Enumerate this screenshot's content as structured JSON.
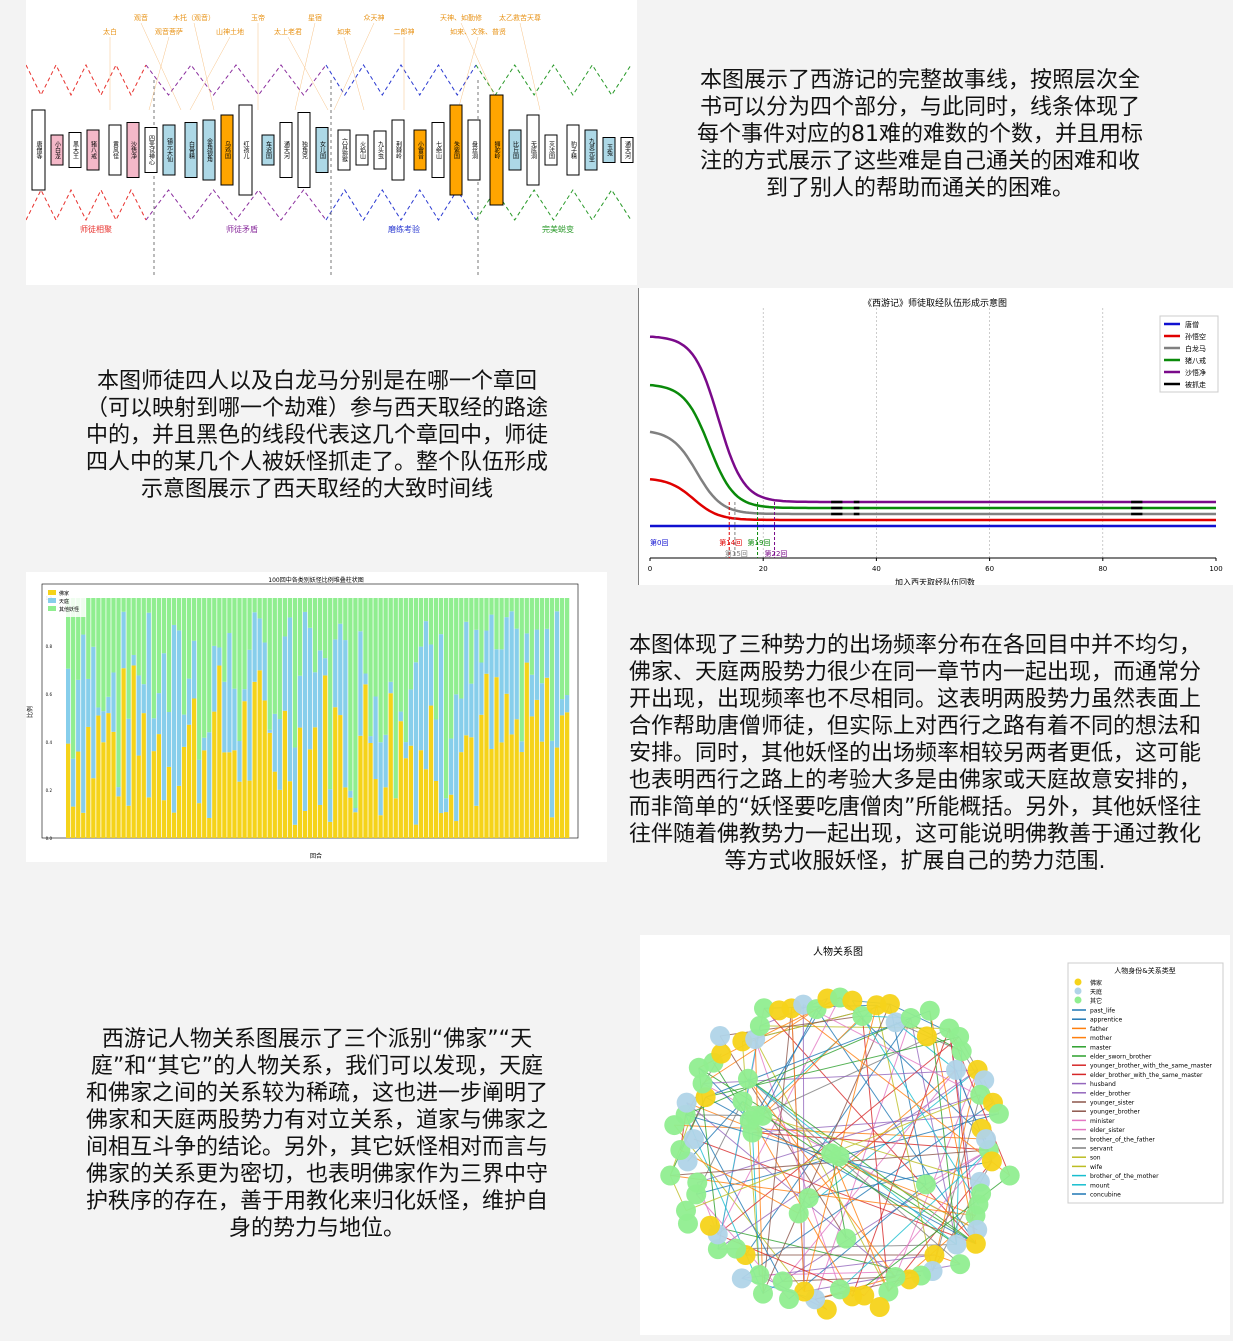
{
  "texts": {
    "story_line": "本图展示了西游记的完整故事线，按照层次全书可以分为四个部分，与此同时，线条体现了每个事件对应的81难的难数的个数，并且用标注的方式展示了这些难是自己通关的困难和收到了别人的帮助而通关的困难。",
    "team_formation": "本图师徒四人以及白龙马分别是在哪一个章回（可以映射到哪一个劫难）参与西天取经的路途中的，并且黑色的线段代表这几个章回中，师徒四人中的某几个人被妖怪抓走了。整个队伍形成示意图展示了西天取经的大致时间线",
    "factions": "本图体现了三种势力的出场频率分布在各回目中并不均匀，佛家、天庭两股势力很少在同一章节内一起出现，而通常分开出现，出现频率也不尽相同。这表明两股势力虽然表面上合作帮助唐僧师徒，但实际上对西行之路有着不同的想法和安排。同时，其他妖怪的出场频率相较另两者更低，这可能也表明西行之路上的考验大多是由佛家或天庭故意安排的，而非简单的“妖怪要吃唐僧肉”所能概括。另外，其他妖怪往往伴随着佛教势力一起出现，这可能说明佛教善于通过教化等方式收服妖怪，扩展自己的势力范围.",
    "relations": "西游记人物关系图展示了三个派别“佛家”“天庭”和“其它”的人物关系，我们可以发现，天庭和佛家之间的关系较为稀疏，这也进一步阐明了佛家和天庭两股势力有对立关系，道家与佛家之间相互斗争的结论。另外，其它妖怪相对而言与佛家的关系更为密切，也表明佛家作为三界中守护秩序的存在，善于用教化来归化妖怪，维护自身的势力与地位。"
  },
  "chart_data": [
    {
      "type": "diagram",
      "title": "",
      "top_labels": [
        "观音",
        "木托（观音）",
        "玉帝",
        "星宿",
        "众天神",
        "天神、如勤修",
        "太乙救苦天尊",
        "太白",
        "观音菩萨",
        "山神土地",
        "太上老君",
        "如来",
        "二郎神",
        "如来、文殊、普贤"
      ],
      "boxes": [
        "唐僧等",
        "小白龙",
        "黑大王",
        "猪八戒",
        "黄风怪",
        "沙悟净",
        "四圣试禅心",
        "镇元大仙",
        "白骨精",
        "金角银角",
        "乌鸡国",
        "红孩儿",
        "车迟国",
        "通天河",
        "独角兕",
        "女儿国",
        "六耳猕猴",
        "火焰山",
        "九头虫",
        "荆棘岭",
        "小雷音",
        "七绝山",
        "朱紫国",
        "盘丝洞",
        "狮驼岭",
        "比丘国",
        "无底洞",
        "灭法国",
        "豹子精",
        "九灵元圣",
        "玉兔",
        "通天河"
      ],
      "bottom_labels": [
        "师徒相聚",
        "师徒矛盾",
        "磨练考验",
        "完美蜕变"
      ],
      "section_colors": [
        "#e8312d",
        "#8b2f9e",
        "#2b3ad1",
        "#2a9a2a"
      ]
    },
    {
      "type": "line",
      "title": "《西游记》师徒取经队伍形成示意图",
      "xlabel": "加入西天取经队伍回数",
      "xlim": [
        0,
        100
      ],
      "xticks": [
        0,
        20,
        40,
        60,
        80,
        100
      ],
      "legend_placement": "top-right",
      "series": [
        {
          "name": "唐僧",
          "color": "#1010d0",
          "join": 0
        },
        {
          "name": "孙悟空",
          "color": "#e00000",
          "join": 14
        },
        {
          "name": "白龙马",
          "color": "#808080",
          "join": 15
        },
        {
          "name": "猪八戒",
          "color": "#0a8a0a",
          "join": 19
        },
        {
          "name": "沙悟净",
          "color": "#7a0a8a",
          "join": 22
        },
        {
          "name": "被抓走",
          "color": "#000000",
          "join": null
        }
      ],
      "annotations": [
        "第0回",
        "第14回",
        "第15回",
        "第19回",
        "第22回"
      ]
    },
    {
      "type": "bar",
      "title": "100回中各类别妖怪比例堆叠柱状图",
      "xlabel": "回合",
      "ylabel": "比例",
      "ylim": [
        0,
        1
      ],
      "legend_placement": "top-left",
      "series": [
        {
          "name": "佛家",
          "color": "#f5d31a"
        },
        {
          "name": "天庭",
          "color": "#87ceeb"
        },
        {
          "name": "其他妖怪",
          "color": "#90ee90"
        }
      ]
    },
    {
      "type": "network",
      "title": "人物关系图",
      "legend_title": "人物身份&关系类型",
      "node_types": [
        {
          "name": "佛家",
          "color": "#f5d31a"
        },
        {
          "name": "天庭",
          "color": "#b0d4e8"
        },
        {
          "name": "其它",
          "color": "#90ee90"
        }
      ],
      "edge_types": [
        {
          "name": "past_life",
          "color": "#1f77b4"
        },
        {
          "name": "apprentice",
          "color": "#1f77b4"
        },
        {
          "name": "father",
          "color": "#ff7f0e"
        },
        {
          "name": "mother",
          "color": "#ff7f0e"
        },
        {
          "name": "master",
          "color": "#2ca02c"
        },
        {
          "name": "elder_sworn_brother",
          "color": "#2ca02c"
        },
        {
          "name": "younger_brother_with_the_same_master",
          "color": "#d62728"
        },
        {
          "name": "elder_brother_with_the_same_master",
          "color": "#d62728"
        },
        {
          "name": "husband",
          "color": "#9467bd"
        },
        {
          "name": "elder_brother",
          "color": "#9467bd"
        },
        {
          "name": "younger_sister",
          "color": "#8c564b"
        },
        {
          "name": "younger_brother",
          "color": "#8c564b"
        },
        {
          "name": "minister",
          "color": "#e377c2"
        },
        {
          "name": "elder_sister",
          "color": "#e377c2"
        },
        {
          "name": "brother_of_the_father",
          "color": "#7f7f7f"
        },
        {
          "name": "servant",
          "color": "#7f7f7f"
        },
        {
          "name": "son",
          "color": "#bcbd22"
        },
        {
          "name": "wife",
          "color": "#bcbd22"
        },
        {
          "name": "brother_of_the_mother",
          "color": "#17becf"
        },
        {
          "name": "mount",
          "color": "#17becf"
        },
        {
          "name": "concubine",
          "color": "#1f77b4"
        }
      ]
    }
  ]
}
